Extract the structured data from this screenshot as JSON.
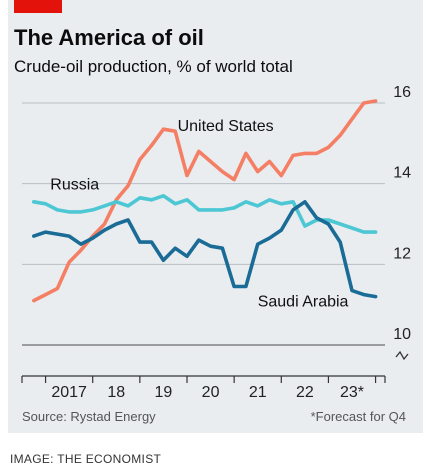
{
  "title": "The America of oil",
  "subtitle": "Crude-oil production, % of world total",
  "source": "Source: Rystad Energy",
  "footnote": "*Forecast for Q4",
  "credit": "IMAGE: THE ECONOMIST",
  "colors": {
    "accent": "#e3120b",
    "background": "#e9edf0",
    "united_states": "#f47f64",
    "russia": "#4cc7d3",
    "saudi_arabia": "#1a6c96"
  },
  "chart_data": {
    "type": "line",
    "title": "The America of oil",
    "subtitle": "Crude-oil production, % of world total",
    "xlabel": "",
    "ylabel": "",
    "ylim": [
      10,
      16
    ],
    "xlim": [
      2016.5,
      2024.2
    ],
    "yticks": [
      10,
      12,
      14,
      16
    ],
    "xticks": [
      {
        "label": "2017",
        "x": 2017.5
      },
      {
        "label": "18",
        "x": 2018.5
      },
      {
        "label": "19",
        "x": 2019.5
      },
      {
        "label": "20",
        "x": 2020.5
      },
      {
        "label": "21",
        "x": 2021.5
      },
      {
        "label": "22",
        "x": 2022.5
      },
      {
        "label": "23*",
        "x": 2023.5
      }
    ],
    "grid": true,
    "axis_break": true,
    "legend": "direct labels",
    "series": [
      {
        "name": "United States",
        "color": "#f47f64",
        "label_at": [
          2019.8,
          15.3
        ],
        "x": [
          2016.75,
          2017.0,
          2017.25,
          2017.5,
          2017.75,
          2018.0,
          2018.25,
          2018.5,
          2018.75,
          2019.0,
          2019.25,
          2019.5,
          2019.75,
          2020.0,
          2020.25,
          2020.5,
          2020.75,
          2021.0,
          2021.25,
          2021.5,
          2021.75,
          2022.0,
          2022.25,
          2022.5,
          2022.75,
          2023.0,
          2023.25,
          2023.5,
          2023.75,
          2024.0
        ],
        "values": [
          11.1,
          11.25,
          11.4,
          12.05,
          12.35,
          12.7,
          13.0,
          13.6,
          13.95,
          14.6,
          14.95,
          15.35,
          15.3,
          14.2,
          14.8,
          14.55,
          14.3,
          14.1,
          14.75,
          14.3,
          14.55,
          14.2,
          14.7,
          14.75,
          14.75,
          14.9,
          15.2,
          15.6,
          16.0,
          16.05
        ]
      },
      {
        "name": "Russia",
        "color": "#4cc7d3",
        "label_at": [
          2017.1,
          13.85
        ],
        "x": [
          2016.75,
          2017.0,
          2017.25,
          2017.5,
          2017.75,
          2018.0,
          2018.25,
          2018.5,
          2018.75,
          2019.0,
          2019.25,
          2019.5,
          2019.75,
          2020.0,
          2020.25,
          2020.5,
          2020.75,
          2021.0,
          2021.25,
          2021.5,
          2021.75,
          2022.0,
          2022.25,
          2022.5,
          2022.75,
          2023.0,
          2023.25,
          2023.5,
          2023.75,
          2024.0
        ],
        "values": [
          13.55,
          13.5,
          13.35,
          13.3,
          13.3,
          13.35,
          13.45,
          13.55,
          13.45,
          13.65,
          13.6,
          13.7,
          13.5,
          13.6,
          13.35,
          13.35,
          13.35,
          13.4,
          13.55,
          13.45,
          13.6,
          13.5,
          13.55,
          12.95,
          13.1,
          13.1,
          13.0,
          12.9,
          12.8,
          12.8
        ]
      },
      {
        "name": "Saudi Arabia",
        "color": "#1a6c96",
        "label_at": [
          2021.5,
          10.95
        ],
        "x": [
          2016.75,
          2017.0,
          2017.25,
          2017.5,
          2017.75,
          2018.0,
          2018.25,
          2018.5,
          2018.75,
          2019.0,
          2019.25,
          2019.5,
          2019.75,
          2020.0,
          2020.25,
          2020.5,
          2020.75,
          2021.0,
          2021.25,
          2021.5,
          2021.75,
          2022.0,
          2022.25,
          2022.5,
          2022.75,
          2023.0,
          2023.25,
          2023.5,
          2023.75,
          2024.0
        ],
        "values": [
          12.7,
          12.8,
          12.75,
          12.7,
          12.5,
          12.65,
          12.85,
          13.0,
          13.1,
          12.55,
          12.55,
          12.1,
          12.4,
          12.2,
          12.6,
          12.45,
          12.4,
          11.45,
          11.45,
          12.5,
          12.65,
          12.85,
          13.35,
          13.55,
          13.15,
          13.0,
          12.55,
          11.35,
          11.25,
          11.2
        ]
      }
    ]
  }
}
